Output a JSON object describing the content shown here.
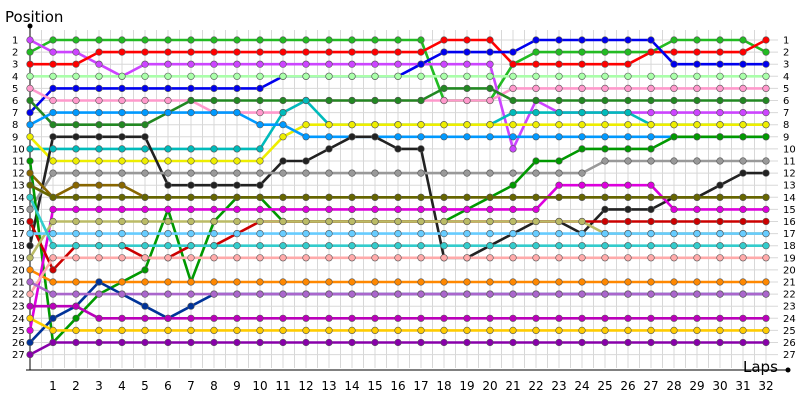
{
  "chart_data": {
    "type": "line",
    "title": "",
    "ylabel": "Position",
    "xlabel": "Laps",
    "x": [
      0,
      1,
      2,
      3,
      4,
      5,
      6,
      7,
      8,
      9,
      10,
      11,
      12,
      13,
      14,
      15,
      16,
      17,
      18,
      19,
      20,
      21,
      22,
      23,
      24,
      25,
      26,
      27,
      28,
      29,
      30,
      31,
      32
    ],
    "xticks": [
      1,
      2,
      3,
      4,
      5,
      6,
      7,
      8,
      9,
      10,
      11,
      12,
      13,
      14,
      15,
      16,
      17,
      18,
      19,
      20,
      21,
      22,
      23,
      24,
      25,
      26,
      27,
      28,
      29,
      30,
      31,
      32
    ],
    "yticks": [
      1,
      2,
      3,
      4,
      5,
      6,
      7,
      8,
      9,
      10,
      11,
      12,
      13,
      14,
      15,
      16,
      17,
      18,
      19,
      20,
      21,
      22,
      23,
      24,
      25,
      26,
      27
    ],
    "ylim": [
      1,
      27
    ],
    "y_inverted": true,
    "grid": true,
    "series": [
      {
        "color": "#22bb22",
        "values": [
          2,
          1,
          1,
          1,
          1,
          1,
          1,
          1,
          1,
          1,
          1,
          1,
          1,
          1,
          1,
          1,
          1,
          1,
          6,
          6,
          6,
          3,
          2,
          2,
          2,
          2,
          2,
          2,
          1,
          1,
          1,
          1,
          2
        ]
      },
      {
        "color": "#cc44ff",
        "values": [
          1,
          2,
          2,
          3,
          4,
          3,
          3,
          3,
          3,
          3,
          3,
          3,
          3,
          3,
          3,
          3,
          3,
          3,
          3,
          3,
          3,
          10,
          6,
          7,
          7,
          7,
          7,
          7,
          7,
          7,
          7,
          7,
          7
        ]
      },
      {
        "color": "#ff0000",
        "values": [
          3,
          3,
          3,
          2,
          2,
          2,
          2,
          2,
          2,
          2,
          2,
          2,
          2,
          2,
          2,
          2,
          2,
          2,
          1,
          1,
          1,
          3,
          3,
          3,
          3,
          3,
          3,
          2,
          2,
          2,
          2,
          2,
          1
        ]
      },
      {
        "color": "#0000ee",
        "values": [
          7,
          5,
          5,
          5,
          5,
          5,
          5,
          5,
          5,
          5,
          5,
          4,
          4,
          4,
          4,
          4,
          4,
          3,
          2,
          2,
          2,
          2,
          1,
          1,
          1,
          1,
          1,
          1,
          3,
          3,
          3,
          3,
          3
        ]
      },
      {
        "color": "#aaffaa",
        "values": [
          4,
          4,
          4,
          4,
          4,
          4,
          4,
          4,
          4,
          4,
          4,
          4,
          4,
          4,
          4,
          4,
          4,
          4,
          4,
          4,
          4,
          4,
          4,
          4,
          4,
          4,
          4,
          4,
          4,
          4,
          4,
          4,
          4
        ]
      },
      {
        "color": "#ff99cc",
        "values": [
          5,
          6,
          6,
          6,
          6,
          6,
          6,
          6,
          7,
          7,
          7,
          7,
          6,
          6,
          6,
          6,
          6,
          6,
          6,
          6,
          6,
          5,
          5,
          5,
          5,
          5,
          5,
          5,
          5,
          5,
          5,
          5,
          5
        ]
      },
      {
        "color": "#228822",
        "values": [
          6,
          8,
          8,
          8,
          8,
          8,
          7,
          6,
          6,
          6,
          6,
          6,
          6,
          6,
          6,
          6,
          6,
          6,
          5,
          5,
          5,
          6,
          6,
          6,
          6,
          6,
          6,
          6,
          6,
          6,
          6,
          6,
          6
        ]
      },
      {
        "color": "#00bbbb",
        "values": [
          10,
          10,
          10,
          10,
          10,
          10,
          10,
          10,
          10,
          10,
          10,
          7,
          6,
          8,
          8,
          8,
          8,
          8,
          8,
          8,
          8,
          7,
          7,
          7,
          7,
          7,
          7,
          8,
          8,
          8,
          8,
          8,
          8
        ]
      },
      {
        "color": "#eeee00",
        "values": [
          9,
          11,
          11,
          11,
          11,
          11,
          11,
          11,
          11,
          11,
          11,
          9,
          8,
          8,
          8,
          8,
          8,
          8,
          8,
          8,
          8,
          8,
          8,
          8,
          8,
          8,
          8,
          8,
          8,
          8,
          8,
          8,
          8
        ]
      },
      {
        "color": "#0099ff",
        "values": [
          8,
          7,
          7,
          7,
          7,
          7,
          7,
          7,
          7,
          7,
          8,
          8,
          9,
          9,
          9,
          9,
          9,
          9,
          9,
          9,
          9,
          9,
          9,
          9,
          9,
          9,
          9,
          9,
          9,
          9,
          9,
          9,
          9
        ]
      },
      {
        "color": "#222222",
        "values": [
          18,
          9,
          9,
          9,
          9,
          9,
          13,
          13,
          13,
          13,
          13,
          11,
          11,
          10,
          9,
          9,
          10,
          10,
          19,
          19,
          18,
          17,
          16,
          16,
          17,
          15,
          15,
          15,
          14,
          14,
          13,
          12,
          12
        ]
      },
      {
        "color": "#999999",
        "values": [
          15,
          12,
          12,
          12,
          12,
          12,
          12,
          12,
          12,
          12,
          12,
          12,
          12,
          12,
          12,
          12,
          12,
          12,
          12,
          12,
          12,
          12,
          12,
          12,
          12,
          11,
          11,
          11,
          11,
          11,
          11,
          11,
          11
        ]
      },
      {
        "color": "#886600",
        "values": [
          12,
          14,
          13,
          13,
          13,
          14,
          14,
          14,
          14,
          14,
          14,
          14,
          14,
          14,
          14,
          14,
          14,
          14,
          14,
          14,
          14,
          14,
          14,
          14,
          14,
          14,
          14,
          14,
          14,
          14,
          14,
          14,
          14
        ]
      },
      {
        "color": "#009900",
        "values": [
          11,
          26,
          24,
          22,
          21,
          20,
          15,
          21,
          16,
          14,
          14,
          16,
          16,
          16,
          16,
          16,
          16,
          16,
          16,
          15,
          14,
          13,
          11,
          11,
          10,
          10,
          10,
          10,
          9,
          9,
          9,
          9,
          9
        ]
      },
      {
        "color": "#ff8800",
        "values": [
          20,
          21,
          21,
          21,
          21,
          21,
          21,
          21,
          21,
          21,
          21,
          21,
          21,
          21,
          21,
          21,
          21,
          21,
          21,
          21,
          21,
          21,
          21,
          21,
          21,
          21,
          21,
          21,
          21,
          21,
          21,
          21,
          21
        ]
      },
      {
        "color": "#dd00dd",
        "values": [
          25,
          15,
          15,
          15,
          15,
          15,
          15,
          15,
          15,
          15,
          15,
          15,
          15,
          15,
          15,
          15,
          15,
          15,
          15,
          15,
          15,
          15,
          15,
          13,
          13,
          13,
          13,
          13,
          15,
          15,
          15,
          15,
          15
        ]
      },
      {
        "color": "#003399",
        "values": [
          26,
          24,
          23,
          21,
          22,
          23,
          24,
          23,
          22,
          22,
          22,
          22,
          22,
          22,
          22,
          22,
          22,
          22,
          22,
          22,
          22,
          22,
          22,
          22,
          22,
          22,
          22,
          22,
          22,
          22,
          22,
          22,
          22
        ]
      },
      {
        "color": "#cc0000",
        "values": [
          16,
          20,
          18,
          18,
          18,
          19,
          19,
          18,
          18,
          17,
          16,
          16,
          16,
          16,
          16,
          16,
          16,
          16,
          16,
          16,
          16,
          16,
          16,
          16,
          16,
          16,
          16,
          16,
          16,
          16,
          16,
          16,
          16
        ]
      },
      {
        "color": "#bbbb66",
        "values": [
          19,
          16,
          16,
          16,
          16,
          16,
          16,
          16,
          16,
          16,
          16,
          16,
          16,
          16,
          16,
          16,
          16,
          16,
          16,
          16,
          16,
          16,
          16,
          16,
          16,
          17,
          17,
          17,
          17,
          17,
          17,
          17,
          17
        ]
      },
      {
        "color": "#ffaaaa",
        "values": [
          22,
          19,
          19,
          19,
          19,
          19,
          19,
          19,
          19,
          19,
          19,
          19,
          19,
          19,
          19,
          19,
          19,
          19,
          19,
          19,
          19,
          19,
          19,
          19,
          19,
          19,
          19,
          19,
          19,
          19,
          19,
          19,
          19
        ]
      },
      {
        "color": "#666600",
        "values": [
          13,
          14,
          14,
          14,
          14,
          14,
          14,
          14,
          14,
          14,
          14,
          14,
          14,
          14,
          14,
          14,
          14,
          14,
          14,
          14,
          14,
          14,
          14,
          14,
          14,
          14,
          14,
          14,
          14,
          14,
          14,
          14,
          14
        ]
      },
      {
        "color": "#66ccff",
        "values": [
          17,
          17,
          17,
          17,
          17,
          17,
          17,
          17,
          17,
          17,
          17,
          17,
          17,
          17,
          17,
          17,
          17,
          17,
          17,
          17,
          17,
          17,
          17,
          17,
          17,
          17,
          17,
          17,
          17,
          17,
          17,
          17,
          17
        ]
      },
      {
        "color": "#aa66cc",
        "values": [
          21,
          22,
          22,
          22,
          22,
          22,
          22,
          22,
          22,
          22,
          22,
          22,
          22,
          22,
          22,
          22,
          22,
          22,
          22,
          22,
          22,
          22,
          22,
          22,
          22,
          22,
          22,
          22,
          22,
          22,
          22,
          22,
          22
        ]
      },
      {
        "color": "#bb00bb",
        "values": [
          23,
          23,
          23,
          24,
          24,
          24,
          24,
          24,
          24,
          24,
          24,
          24,
          24,
          24,
          24,
          24,
          24,
          24,
          24,
          24,
          24,
          24,
          24,
          24,
          24,
          24,
          24,
          24,
          24,
          24,
          24,
          24,
          24
        ]
      },
      {
        "color": "#33cccc",
        "values": [
          14,
          18,
          18,
          18,
          18,
          18,
          18,
          18,
          18,
          18,
          18,
          18,
          18,
          18,
          18,
          18,
          18,
          18,
          18,
          18,
          18,
          18,
          18,
          18,
          18,
          18,
          18,
          18,
          18,
          18,
          18,
          18,
          18
        ]
      },
      {
        "color": "#ffcc00",
        "values": [
          24,
          25,
          25,
          25,
          25,
          25,
          25,
          25,
          25,
          25,
          25,
          25,
          25,
          25,
          25,
          25,
          25,
          25,
          25,
          25,
          25,
          25,
          25,
          25,
          25,
          25,
          25,
          25,
          25,
          25,
          25,
          25,
          25
        ]
      },
      {
        "color": "#8800aa",
        "values": [
          27,
          26,
          26,
          26,
          26,
          26,
          26,
          26,
          26,
          26,
          26,
          26,
          26,
          26,
          26,
          26,
          26,
          26,
          26,
          26,
          26,
          26,
          26,
          26,
          26,
          26,
          26,
          26,
          26,
          26,
          26,
          26,
          26
        ]
      }
    ]
  }
}
